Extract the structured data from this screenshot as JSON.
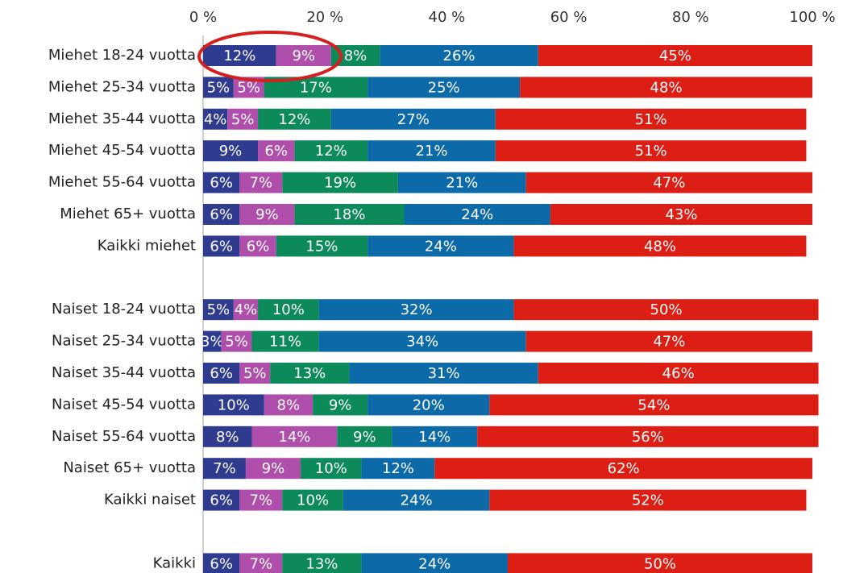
{
  "chart_data": {
    "type": "stacked-bar-horizontal",
    "categories": [
      "Miehet 18-24 vuotta",
      "Miehet 25-34 vuotta",
      "Miehet 35-44 vuotta",
      "Miehet 45-54 vuotta",
      "Miehet 55-64 vuotta",
      "Miehet 65+ vuotta",
      "Kaikki miehet",
      null,
      "Naiset 18-24 vuotta",
      "Naiset 25-34 vuotta",
      "Naiset 35-44 vuotta",
      "Naiset 45-54 vuotta",
      "Naiset 55-64 vuotta",
      "Naiset 65+ vuotta",
      "Kaikki naiset",
      null,
      "Kaikki"
    ],
    "series": [
      {
        "color": "#2e3b8f",
        "values": [
          12,
          5,
          4,
          9,
          6,
          6,
          6,
          null,
          5,
          3,
          6,
          10,
          8,
          7,
          6,
          null,
          6
        ],
        "value_labels": [
          "12%",
          "5%",
          "4%",
          "9%",
          "6%",
          "6%",
          "6%",
          null,
          "5%",
          "3%",
          "6%",
          "10%",
          "8%",
          "7%",
          "6%",
          null,
          "6%"
        ]
      },
      {
        "color": "#b04fab",
        "values": [
          9,
          5,
          5,
          6,
          7,
          9,
          6,
          null,
          4,
          5,
          5,
          8,
          14,
          9,
          7,
          null,
          7
        ],
        "value_labels": [
          "9%",
          "5%",
          "5%",
          "6%",
          "7%",
          "9%",
          "6%",
          null,
          "4%",
          "5%",
          "5%",
          "8%",
          "14%",
          "9%",
          "7%",
          null,
          "7%"
        ]
      },
      {
        "color": "#0c8a5a",
        "values": [
          8,
          17,
          12,
          12,
          19,
          18,
          15,
          null,
          10,
          11,
          13,
          9,
          9,
          10,
          10,
          null,
          13
        ],
        "value_labels": [
          "8%",
          "17%",
          "12%",
          "12%",
          "19%",
          "18%",
          "15%",
          null,
          "10%",
          "11%",
          "13%",
          "9%",
          "9%",
          "10%",
          "10%",
          null,
          "13%"
        ]
      },
      {
        "color": "#0c6aa8",
        "values": [
          26,
          25,
          27,
          21,
          21,
          24,
          24,
          null,
          32,
          34,
          31,
          20,
          14,
          12,
          24,
          null,
          24
        ],
        "value_labels": [
          "26%",
          "25%",
          "27%",
          "21%",
          "21%",
          "24%",
          "24%",
          null,
          "32%",
          "34%",
          "31%",
          "20%",
          "14%",
          "12%",
          "24%",
          null,
          "24%"
        ]
      },
      {
        "color": "#dc1e14",
        "values": [
          45,
          48,
          51,
          51,
          47,
          43,
          48,
          null,
          50,
          47,
          46,
          54,
          56,
          62,
          52,
          null,
          50
        ],
        "value_labels": [
          "45%",
          "48%",
          "51%",
          "51%",
          "47%",
          "43%",
          "48%",
          null,
          "50%",
          "47%",
          "46%",
          "54%",
          "56%",
          "62%",
          "52%",
          null,
          "50%"
        ]
      }
    ],
    "xlim": [
      0,
      100
    ],
    "xticks": [
      {
        "value": 0,
        "label": "0 %"
      },
      {
        "value": 20,
        "label": "20 %"
      },
      {
        "value": 40,
        "label": "40 %"
      },
      {
        "value": 60,
        "label": "60 %"
      },
      {
        "value": 80,
        "label": "80 %"
      },
      {
        "value": 100,
        "label": "100 %"
      }
    ]
  }
}
